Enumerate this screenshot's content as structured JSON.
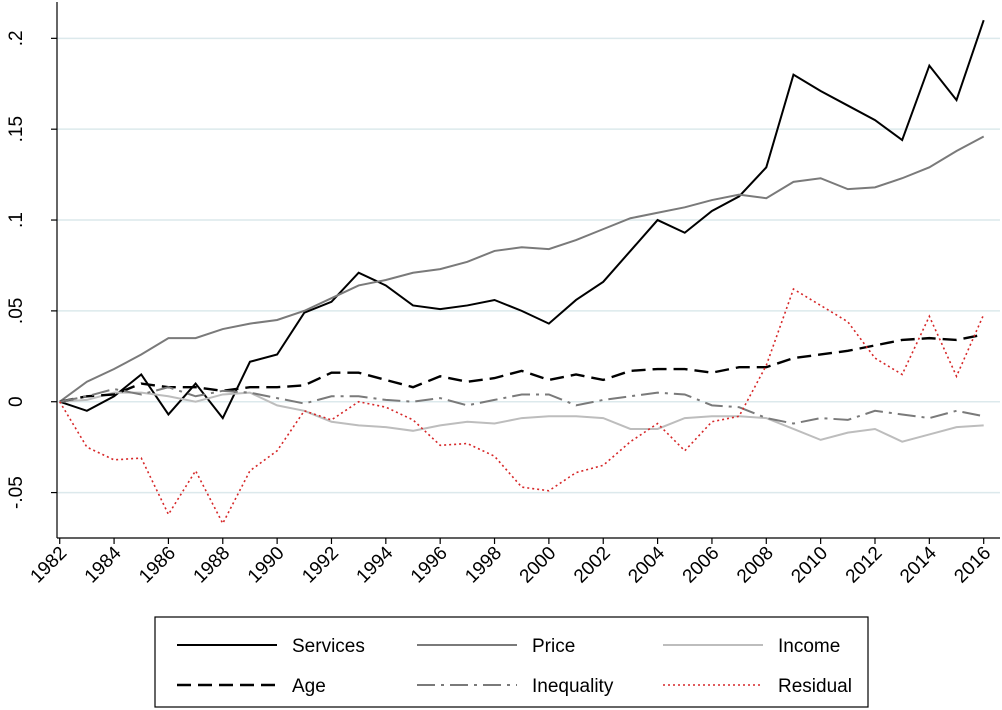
{
  "chart_data": {
    "type": "line",
    "x": [
      1982,
      1983,
      1984,
      1985,
      1986,
      1987,
      1988,
      1989,
      1990,
      1991,
      1992,
      1993,
      1994,
      1995,
      1996,
      1997,
      1998,
      1999,
      2000,
      2001,
      2002,
      2003,
      2004,
      2005,
      2006,
      2007,
      2008,
      2009,
      2010,
      2011,
      2012,
      2013,
      2014,
      2015,
      2016
    ],
    "xlim": [
      1981.9,
      2016.6
    ],
    "xticks": [
      1982,
      1984,
      1986,
      1988,
      1990,
      1992,
      1994,
      1996,
      1998,
      2000,
      2002,
      2004,
      2006,
      2008,
      2010,
      2012,
      2014,
      2016
    ],
    "ylim": [
      -0.075,
      0.22
    ],
    "yticks": [
      {
        "value": -0.05,
        "label": "-.05"
      },
      0,
      {
        "value": 0.05,
        "label": ".05"
      },
      {
        "value": 0.1,
        "label": ".1"
      },
      {
        "value": 0.15,
        "label": ".15"
      },
      {
        "value": 0.2,
        "label": ".2"
      }
    ],
    "grid": true,
    "legend": "bottom",
    "series": [
      {
        "name": "Services",
        "color": "#000000",
        "style": "solid",
        "values": [
          0,
          -0.005,
          0.003,
          0.015,
          -0.007,
          0.01,
          -0.009,
          0.022,
          0.026,
          0.049,
          0.055,
          0.071,
          0.064,
          0.053,
          0.051,
          0.053,
          0.056,
          0.05,
          0.043,
          0.056,
          0.066,
          0.083,
          0.1,
          0.093,
          0.105,
          0.113,
          0.129,
          0.18,
          0.171,
          0.163,
          0.155,
          0.144,
          0.185,
          0.166,
          0.21
        ]
      },
      {
        "name": "Price",
        "color": "#7a7a7a",
        "style": "solid",
        "values": [
          0,
          0.011,
          0.018,
          0.026,
          0.035,
          0.035,
          0.04,
          0.043,
          0.045,
          0.05,
          0.057,
          0.064,
          0.067,
          0.071,
          0.073,
          0.077,
          0.083,
          0.085,
          0.084,
          0.089,
          0.095,
          0.101,
          0.104,
          0.107,
          0.111,
          0.114,
          0.112,
          0.121,
          0.123,
          0.117,
          0.118,
          0.123,
          0.129,
          0.138,
          0.146
        ]
      },
      {
        "name": "Income",
        "color": "#bdbdbd",
        "style": "solid",
        "values": [
          0,
          0.001,
          0.005,
          0.005,
          0.003,
          0,
          0.004,
          0.005,
          -0.002,
          -0.005,
          -0.011,
          -0.013,
          -0.014,
          -0.016,
          -0.013,
          -0.011,
          -0.012,
          -0.009,
          -0.008,
          -0.008,
          -0.009,
          -0.015,
          -0.015,
          -0.009,
          -0.008,
          -0.008,
          -0.009,
          -0.015,
          -0.021,
          -0.017,
          -0.015,
          -0.022,
          -0.018,
          -0.014,
          -0.013
        ]
      },
      {
        "name": "Age",
        "color": "#000000",
        "style": "dash",
        "values": [
          0,
          0.003,
          0.004,
          0.01,
          0.008,
          0.008,
          0.006,
          0.008,
          0.008,
          0.009,
          0.016,
          0.016,
          0.012,
          0.008,
          0.014,
          0.011,
          0.013,
          0.017,
          0.012,
          0.015,
          0.012,
          0.017,
          0.018,
          0.018,
          0.016,
          0.019,
          0.019,
          0.024,
          0.026,
          0.028,
          0.031,
          0.034,
          0.035,
          0.034,
          0.037
        ]
      },
      {
        "name": "Inequality",
        "color": "#7a7a7a",
        "style": "dashdot",
        "values": [
          0,
          0.003,
          0.007,
          0.004,
          0.008,
          0.003,
          0.006,
          0.005,
          0.002,
          -0.001,
          0.003,
          0.003,
          0.001,
          0,
          0.002,
          -0.002,
          0.001,
          0.004,
          0.004,
          -0.002,
          0.001,
          0.003,
          0.005,
          0.004,
          -0.002,
          -0.003,
          -0.009,
          -0.012,
          -0.009,
          -0.01,
          -0.005,
          -0.007,
          -0.009,
          -0.005,
          -0.008
        ]
      },
      {
        "name": "Residual",
        "color": "#d62728",
        "style": "dot",
        "values": [
          0,
          -0.025,
          -0.032,
          -0.031,
          -0.062,
          -0.038,
          -0.067,
          -0.038,
          -0.027,
          -0.005,
          -0.01,
          0,
          -0.003,
          -0.01,
          -0.024,
          -0.023,
          -0.03,
          -0.047,
          -0.049,
          -0.039,
          -0.035,
          -0.022,
          -0.012,
          -0.027,
          -0.011,
          -0.008,
          0.02,
          0.062,
          0.053,
          0.044,
          0.024,
          0.015,
          0.047,
          0.014,
          0.048
        ]
      }
    ]
  }
}
